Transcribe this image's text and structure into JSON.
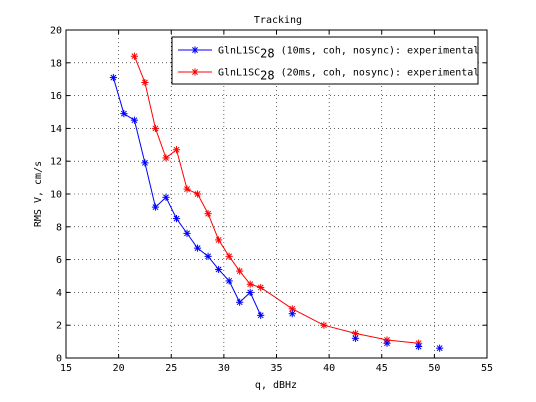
{
  "chart_data": {
    "type": "line",
    "title": "Tracking",
    "xlabel": "q, dBHz",
    "ylabel": "RMS V, cm/s",
    "xlim": [
      15,
      55
    ],
    "ylim": [
      0,
      20
    ],
    "xticks": [
      15,
      20,
      25,
      30,
      35,
      40,
      45,
      50,
      55
    ],
    "yticks": [
      0,
      2,
      4,
      6,
      8,
      10,
      12,
      14,
      16,
      18,
      20
    ],
    "grid": true,
    "legend_position": "top-right",
    "series": [
      {
        "name_main": "GlnL1SC",
        "name_sub": "28",
        "name_rest": " (10ms, coh, nosync): experimental",
        "color": "#0000ff",
        "marker": "asterisk",
        "x": [
          19.5,
          20.5,
          21.5,
          22.5,
          23.5,
          24.5,
          25.5,
          26.5,
          27.5,
          28.5,
          29.5,
          30.5,
          31.5,
          32.5,
          33.5
        ],
        "y": [
          17.1,
          14.9,
          14.5,
          11.9,
          9.2,
          9.8,
          8.5,
          7.6,
          6.7,
          6.2,
          5.4,
          4.7,
          3.4,
          4.0,
          2.6
        ]
      },
      {
        "name_main": "GlnL1SC",
        "name_sub": "28",
        "name_rest": " (20ms, coh, nosync): experimental",
        "color": "#ff0000",
        "marker": "asterisk",
        "x": [
          21.5,
          22.5,
          23.5,
          24.5,
          25.5,
          26.5,
          27.5,
          28.5,
          29.5,
          30.5,
          31.5,
          32.5,
          33.5,
          36.5,
          39.5,
          42.5,
          45.5,
          48.5
        ],
        "y": [
          18.4,
          16.8,
          14.0,
          12.2,
          12.7,
          10.3,
          10.0,
          8.8,
          7.2,
          6.2,
          5.3,
          4.5,
          4.3,
          3.0,
          2.0,
          1.5,
          1.1,
          0.9
        ]
      }
    ],
    "extra_points": [
      {
        "series": 0,
        "x": 36.5,
        "y": 2.7
      },
      {
        "series": 0,
        "x": 42.5,
        "y": 1.2
      },
      {
        "series": 0,
        "x": 45.5,
        "y": 0.9
      },
      {
        "series": 0,
        "x": 48.5,
        "y": 0.7
      },
      {
        "series": 0,
        "x": 50.5,
        "y": 0.6
      }
    ]
  }
}
